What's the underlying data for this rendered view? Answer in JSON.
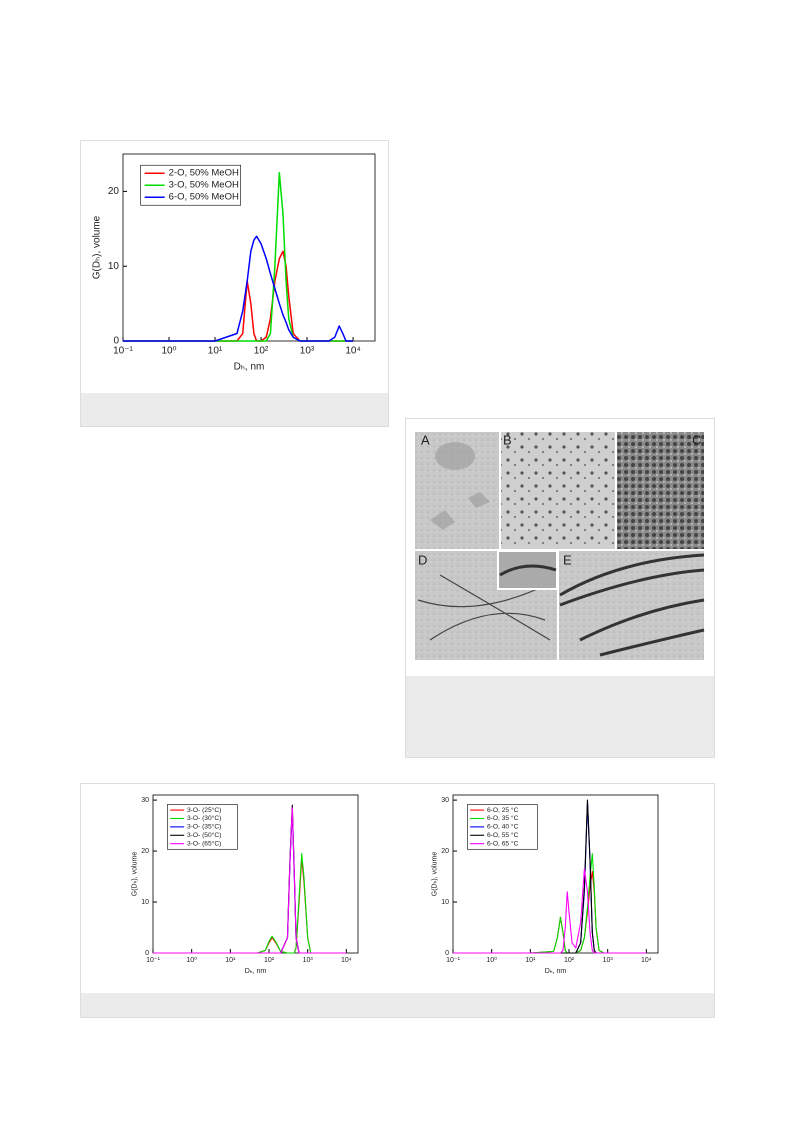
{
  "chart_data": [
    {
      "type": "line",
      "x_label": "Dₕ, nm",
      "y_label": "G(Dₕ), volume",
      "log_x": true,
      "legend": "upper left",
      "xlim": [
        0.1,
        30000
      ],
      "ylim": [
        0,
        25
      ],
      "xticks": [
        {
          "value": 0.1,
          "label": "10⁻¹"
        },
        {
          "value": 1,
          "label": "10⁰"
        },
        {
          "value": 10,
          "label": "10¹"
        },
        {
          "value": 100,
          "label": "10²"
        },
        {
          "value": 1000,
          "label": "10³"
        },
        {
          "value": 10000,
          "label": "10⁴"
        }
      ],
      "yticks": [
        0,
        10,
        20
      ],
      "x": [
        0.1,
        1,
        10,
        30,
        40,
        50,
        60,
        70,
        80,
        100,
        130,
        160,
        200,
        250,
        300,
        350,
        400,
        500,
        700,
        1000,
        2000,
        3000,
        4000,
        5000,
        6000,
        7000,
        10000
      ],
      "series": [
        {
          "name": "2-O, 50% MeOH",
          "color": "#ff0000",
          "values": [
            0,
            0,
            0,
            0,
            1,
            8,
            5,
            1,
            0,
            0,
            0.5,
            3,
            8,
            11,
            12,
            10,
            6,
            1,
            0,
            0,
            0,
            0,
            0,
            0,
            0,
            0,
            0
          ]
        },
        {
          "name": "3-O, 50% MeOH",
          "color": "#00dd00",
          "values": [
            0,
            0,
            0,
            0,
            0,
            0,
            0,
            0,
            0,
            0,
            0,
            1,
            10,
            22.5,
            17,
            8,
            3,
            0.5,
            0,
            0,
            0,
            0,
            0,
            0,
            0,
            0,
            0
          ]
        },
        {
          "name": "6-O, 50% MeOH",
          "color": "#0000ff",
          "values": [
            0,
            0,
            0,
            1,
            4,
            8,
            12,
            13.5,
            14,
            13,
            11,
            9,
            7,
            5,
            3.5,
            2.5,
            1.5,
            0.5,
            0,
            0,
            0,
            0,
            0.5,
            2,
            1,
            0,
            0
          ]
        }
      ]
    },
    {
      "type": "line",
      "x_label": "Dₕ, nm",
      "y_label": "G(Dₕ), volume",
      "log_x": true,
      "legend": "upper left",
      "xlim": [
        0.1,
        20000
      ],
      "ylim": [
        0,
        31
      ],
      "xticks": [
        {
          "value": 0.1,
          "label": "10⁻¹"
        },
        {
          "value": 1,
          "label": "10⁰"
        },
        {
          "value": 10,
          "label": "10¹"
        },
        {
          "value": 100,
          "label": "10²"
        },
        {
          "value": 1000,
          "label": "10³"
        },
        {
          "value": 10000,
          "label": "10⁴"
        }
      ],
      "yticks": [
        0,
        10,
        20,
        30
      ],
      "x": [
        0.1,
        1,
        10,
        50,
        80,
        100,
        120,
        150,
        200,
        300,
        350,
        400,
        450,
        500,
        600,
        700,
        800,
        1000,
        1200,
        2000,
        10000
      ],
      "series": [
        {
          "name": "3-O- (25°C)",
          "color": "#ff0000",
          "values": [
            0,
            0,
            0,
            0,
            0.5,
            2,
            3,
            2,
            0.3,
            0,
            0,
            0,
            0,
            1,
            10,
            18.5,
            14,
            3,
            0,
            0,
            0
          ]
        },
        {
          "name": "3-O- (30°C)",
          "color": "#00dd00",
          "values": [
            0,
            0,
            0,
            0,
            0.5,
            2.3,
            3.3,
            2.2,
            0.3,
            0,
            0,
            0,
            0,
            1,
            11,
            19.5,
            15,
            3,
            0,
            0,
            0
          ]
        },
        {
          "name": "3-O- (35°C)",
          "color": "#0000ff",
          "values": [
            0,
            0,
            0,
            0,
            0,
            0,
            0,
            0,
            0,
            3,
            18,
            28,
            15,
            3,
            0,
            0,
            0,
            0,
            0,
            0,
            0
          ]
        },
        {
          "name": "3-O- (50°C)",
          "color": "#000000",
          "values": [
            0,
            0,
            0,
            0,
            0,
            0,
            0,
            0,
            0,
            3,
            19,
            29,
            16,
            3,
            0,
            0,
            0,
            0,
            0,
            0,
            0
          ]
        },
        {
          "name": "3-O- (65°C)",
          "color": "#ff00ff",
          "values": [
            0,
            0,
            0,
            0,
            0,
            0,
            0,
            0,
            0,
            3,
            18.5,
            28.5,
            15.5,
            3,
            0,
            0,
            0,
            0,
            0,
            0,
            0
          ]
        }
      ]
    },
    {
      "type": "line",
      "x_label": "Dₕ, nm",
      "y_label": "G(Dₕ), volume",
      "log_x": true,
      "legend": "upper left",
      "xlim": [
        0.1,
        20000
      ],
      "ylim": [
        0,
        31
      ],
      "xticks": [
        {
          "value": 0.1,
          "label": "10⁻¹"
        },
        {
          "value": 1,
          "label": "10⁰"
        },
        {
          "value": 10,
          "label": "10¹"
        },
        {
          "value": 100,
          "label": "10²"
        },
        {
          "value": 1000,
          "label": "10³"
        },
        {
          "value": 10000,
          "label": "10⁴"
        }
      ],
      "yticks": [
        0,
        10,
        20,
        30
      ],
      "x": [
        0.1,
        1,
        10,
        40,
        50,
        60,
        70,
        80,
        90,
        100,
        120,
        150,
        200,
        250,
        300,
        350,
        400,
        450,
        500,
        600,
        800,
        1000,
        10000
      ],
      "series": [
        {
          "name": "6-O, 25 °C",
          "color": "#ff0000",
          "values": [
            0,
            0,
            0,
            0.3,
            3,
            7,
            4,
            0.5,
            0,
            0,
            0,
            0,
            0.5,
            3,
            8,
            13,
            16,
            12,
            5,
            0.5,
            0,
            0,
            0
          ]
        },
        {
          "name": "6-O, 35 °C",
          "color": "#00dd00",
          "values": [
            0,
            0,
            0,
            0.3,
            3,
            7,
            4,
            0.5,
            0,
            0,
            0,
            0,
            0.5,
            3,
            9,
            15,
            19.5,
            13,
            5,
            0.5,
            0,
            0,
            0
          ]
        },
        {
          "name": "6-O, 40 °C",
          "color": "#0000ff",
          "values": [
            0,
            0,
            0,
            0,
            0,
            0,
            0,
            0,
            0,
            0,
            0,
            0,
            2,
            12,
            29.5,
            18,
            4,
            0.5,
            0,
            0,
            0,
            0,
            0
          ]
        },
        {
          "name": "6-O, 55 °C",
          "color": "#000000",
          "values": [
            0,
            0,
            0,
            0,
            0,
            0,
            0,
            0,
            0,
            0,
            0,
            0,
            2,
            13,
            30,
            18,
            4,
            0.5,
            0,
            0,
            0,
            0,
            0
          ]
        },
        {
          "name": "6-O, 65 °C",
          "color": "#ff00ff",
          "values": [
            0,
            0,
            0,
            0,
            0,
            0,
            0.5,
            5,
            12,
            8,
            2,
            1,
            6,
            16.5,
            12,
            4,
            0.5,
            0,
            0,
            0,
            0,
            0,
            0
          ]
        }
      ]
    }
  ],
  "figure_2": {
    "panel_labels": [
      "A",
      "B",
      "C",
      "D",
      "E"
    ]
  }
}
